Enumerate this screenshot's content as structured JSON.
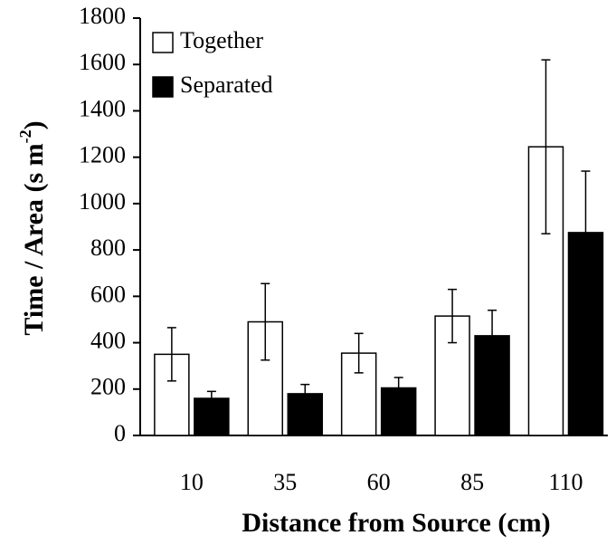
{
  "chart_data": {
    "type": "bar",
    "xlabel": "Distance from Source (cm)",
    "ylabel": [
      "Time / Area (s m",
      "-2",
      ")"
    ],
    "categories": [
      "10",
      "35",
      "60",
      "85",
      "110"
    ],
    "series": [
      {
        "name": "Together",
        "color": "#ffffff",
        "values": [
          350,
          490,
          355,
          515,
          1245
        ],
        "errors": [
          115,
          165,
          85,
          115,
          375
        ]
      },
      {
        "name": "Separated",
        "color": "#000000",
        "values": [
          160,
          180,
          205,
          430,
          875
        ],
        "errors": [
          30,
          40,
          45,
          110,
          265
        ]
      }
    ],
    "ylim": [
      0,
      1800
    ],
    "yticks": [
      0,
      200,
      400,
      600,
      800,
      1000,
      1200,
      1400,
      1600,
      1800
    ],
    "legend": "upper left"
  }
}
